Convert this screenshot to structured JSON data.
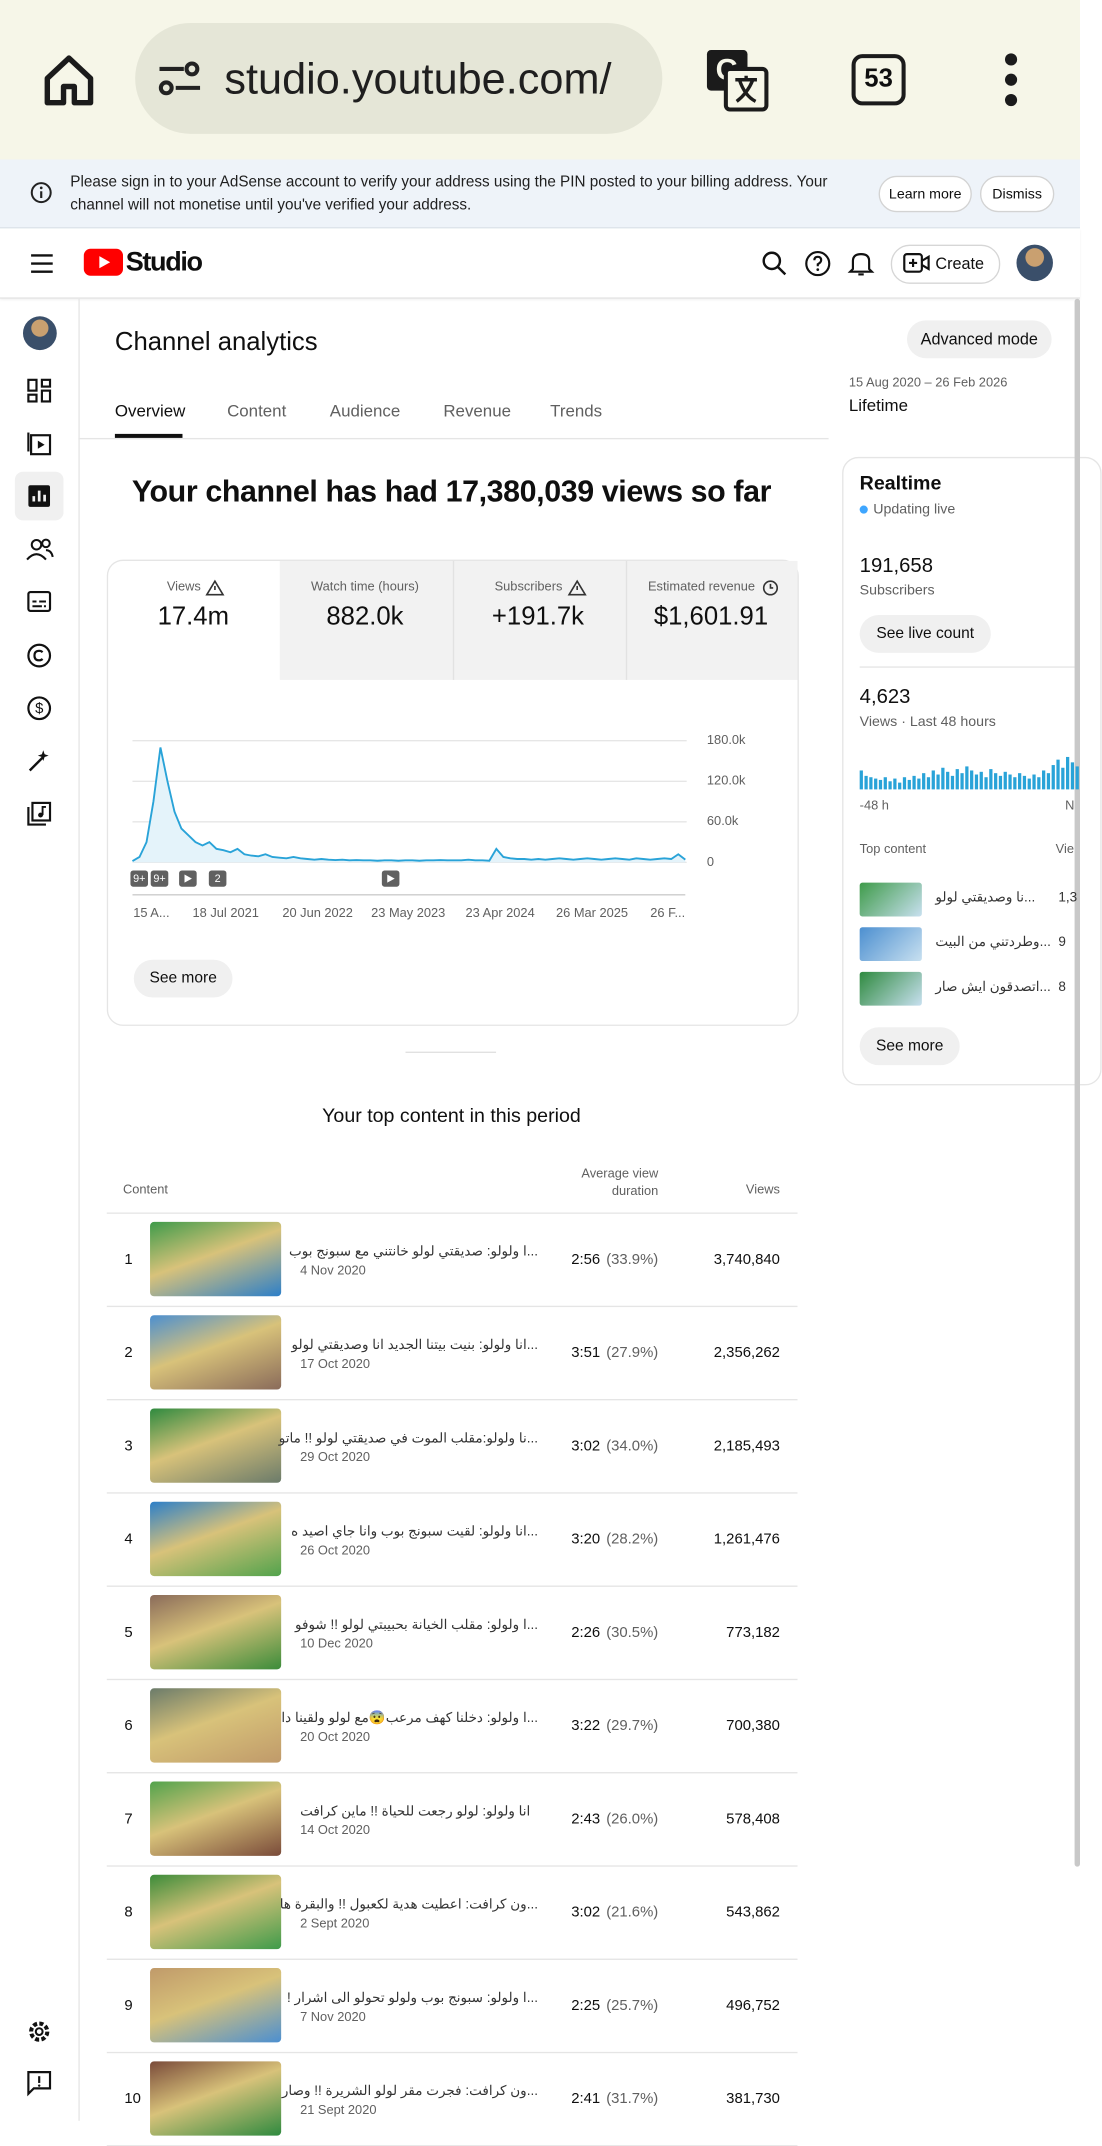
{
  "browser": {
    "url": "studio.youtube.com/",
    "tab_count": "53"
  },
  "banner": {
    "text": "Please sign in to your AdSense account to verify your address using the PIN posted to your billing address. Your channel will not monetise until you've verified your address.",
    "learn_more": "Learn more",
    "dismiss": "Dismiss"
  },
  "header": {
    "logo": "Studio",
    "create": "Create"
  },
  "analytics": {
    "title": "Channel analytics",
    "advanced": "Advanced mode",
    "tabs": [
      "Overview",
      "Content",
      "Audience",
      "Revenue",
      "Trends"
    ],
    "date_range": "15 Aug 2020 – 26 Feb 2026",
    "period": "Lifetime",
    "headline": "Your channel has had 17,380,039 views so far",
    "metrics": [
      {
        "label": "Views",
        "value": "17.4m"
      },
      {
        "label": "Watch time (hours)",
        "value": "882.0k"
      },
      {
        "label": "Subscribers",
        "value": "+191.7k"
      },
      {
        "label": "Estimated revenue",
        "value": "$1,601.91"
      }
    ],
    "see_more": "See more"
  },
  "chart_data": {
    "type": "line",
    "color": "#29a3d8",
    "values": [
      2000,
      8000,
      30000,
      90000,
      170000,
      120000,
      75000,
      50000,
      40000,
      30000,
      25000,
      30000,
      20000,
      18000,
      15000,
      20000,
      12000,
      10000,
      9000,
      12000,
      8000,
      7000,
      6000,
      8000,
      6000,
      5000,
      4000,
      5000,
      4000,
      3500,
      4000,
      3000,
      3500,
      3000,
      3000,
      2500,
      3000,
      3000,
      2500,
      3000,
      3000,
      2500,
      3000,
      3000,
      3500,
      3000,
      3000,
      3000,
      4000,
      3000,
      3000,
      2500,
      20000,
      8000,
      6000,
      5000,
      5000,
      4000,
      5000,
      4000,
      5000,
      6000,
      5000,
      4000,
      5000,
      6000,
      5000,
      4000,
      5000,
      6000,
      5000,
      4000,
      6000,
      5000,
      4000,
      5000,
      6000,
      5000,
      12000,
      4000
    ],
    "ylim": [
      0,
      180000
    ],
    "yticks": [
      0,
      {
        "value": 60000,
        "label": "60.0k"
      },
      {
        "value": 120000,
        "label": "120.0k"
      },
      {
        "value": 180000,
        "label": "180.0k"
      }
    ],
    "x_labels": [
      "15 A...",
      "18 Jul 2021",
      "20 Jun 2022",
      "23 May 2023",
      "23 Apr 2024",
      "26 Mar 2025",
      "26 F..."
    ],
    "annotations": [
      "9+",
      "9+",
      "2"
    ]
  },
  "realtime": {
    "title": "Realtime",
    "status": "Updating live",
    "subscribers": "191,658",
    "subscribers_label": "Subscribers",
    "live_button": "See live count",
    "views": "4,623",
    "views_label": "Views · Last 48 hours",
    "chart": {
      "type": "bar",
      "color": "#29a3d8",
      "values": [
        14,
        10,
        9,
        8,
        7,
        9,
        6,
        8,
        5,
        9,
        7,
        10,
        8,
        12,
        9,
        14,
        11,
        16,
        13,
        10,
        15,
        12,
        17,
        14,
        11,
        13,
        9,
        15,
        12,
        10,
        13,
        11,
        9,
        12,
        10,
        8,
        11,
        9,
        14,
        12,
        18,
        22,
        16,
        24,
        20,
        17
      ],
      "start_label": "-48 h",
      "end_label": "N"
    },
    "top_title": "Top content",
    "top_views": "Vie",
    "items": [
      {
        "title": "...نا وصديقتي لولو",
        "views": "1,3"
      },
      {
        "title": "...وطردتني من البيت",
        "views": "9"
      },
      {
        "title": "...اتصدقون ايش صار",
        "views": "8"
      }
    ],
    "see_more": "See more"
  },
  "top_content": {
    "title": "Your top content in this period",
    "headers": [
      "Content",
      "Average view duration",
      "Views"
    ],
    "rows": [
      {
        "rank": 1,
        "title": "...ا ولولو: صديقتي لولو خانتني مع سبونج بوب",
        "date": "4 Nov 2020",
        "duration": "2:56",
        "percent": "(33.9%)",
        "views": "3,740,840"
      },
      {
        "rank": 2,
        "title": "...انا ولولو: بنيت بيتنا الجديد انا وصديقتي لولو",
        "date": "17 Oct 2020",
        "duration": "3:51",
        "percent": "(27.9%)",
        "views": "2,356,262"
      },
      {
        "rank": 3,
        "title": "...نا ولولو:مقلب الموت في صديقتي لولو !! ماتو",
        "date": "29 Oct 2020",
        "duration": "3:02",
        "percent": "(34.0%)",
        "views": "2,185,493"
      },
      {
        "rank": 4,
        "title": "...انا ولولو: لقيت سبونج بوب وانا جاي اصيد ه",
        "date": "26 Oct 2020",
        "duration": "3:20",
        "percent": "(28.2%)",
        "views": "1,261,476"
      },
      {
        "rank": 5,
        "title": "...ا ولولو: مقلب الخيانة بحبيبتي لولو !! شوفو",
        "date": "10 Dec 2020",
        "duration": "2:26",
        "percent": "(30.5%)",
        "views": "773,182"
      },
      {
        "rank": 6,
        "title": "...ا ولولو: دخلنا كهف مرعب😨مع لولو ولقينا دا",
        "date": "20 Oct 2020",
        "duration": "3:22",
        "percent": "(29.7%)",
        "views": "700,380"
      },
      {
        "rank": 7,
        "title": "انا ولولو: لولو رجعت للحياة !! ماين كرافت",
        "date": "14 Oct 2020",
        "duration": "2:43",
        "percent": "(26.0%)",
        "views": "578,408"
      },
      {
        "rank": 8,
        "title": "...ون كرافت: اعطيت هدية لكعبول !! والبقرة ها",
        "date": "2 Sept 2020",
        "duration": "3:02",
        "percent": "(21.6%)",
        "views": "543,862"
      },
      {
        "rank": 9,
        "title": "...ا ولولو: سبونج بوب ولولو تحولو الى اشرار !",
        "date": "7 Nov 2020",
        "duration": "2:25",
        "percent": "(25.7%)",
        "views": "496,752"
      },
      {
        "rank": 10,
        "title": "...ون كرافت: فجرت مقر لولو الشريرة !! وصار",
        "date": "21 Sept 2020",
        "duration": "2:41",
        "percent": "(31.7%)",
        "views": "381,730"
      }
    ]
  }
}
